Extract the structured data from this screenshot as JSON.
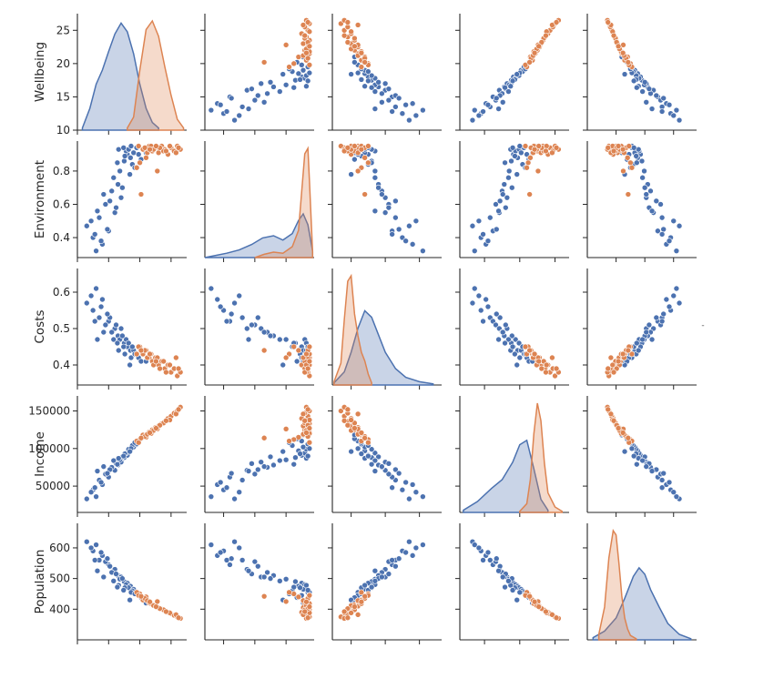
{
  "chart_data": {
    "type": "scatter",
    "title": "",
    "variables": [
      "Wellbeing",
      "Environment",
      "Costs",
      "Income",
      "Population"
    ],
    "axes": {
      "Wellbeing": {
        "range": [
          10,
          27.5
        ],
        "ticks": [
          10,
          15,
          20,
          25
        ],
        "tick_labels": [
          "10",
          "15",
          "20",
          "25"
        ]
      },
      "Environment": {
        "range": [
          0.28,
          0.98
        ],
        "ticks": [
          0.4,
          0.6,
          0.8
        ],
        "tick_labels": [
          "0.4",
          "0.6",
          "0.8"
        ]
      },
      "Costs": {
        "range": [
          0.345,
          0.665
        ],
        "ticks": [
          0.4,
          0.5,
          0.6
        ],
        "tick_labels": [
          "0.4",
          "0.5",
          "0.6"
        ]
      },
      "Income": {
        "range": [
          15000,
          170000
        ],
        "ticks": [
          50000,
          100000,
          150000
        ],
        "tick_labels": [
          "50000",
          "100000",
          "150000"
        ]
      },
      "Population": {
        "range": [
          300,
          680
        ],
        "ticks": [
          400,
          500,
          600
        ],
        "tick_labels": [
          "400",
          "500",
          "600"
        ]
      }
    },
    "diagonal": "kde",
    "off_diagonal": "scatter",
    "legend_handle_text": "-",
    "series": [
      {
        "name": "group-blue",
        "color": "#4c72b0",
        "points": [
          {
            "Wellbeing": 11.5,
            "Environment": 0.47,
            "Costs": 0.57,
            "Income": 33000,
            "Population": 620
          },
          {
            "Wellbeing": 13.0,
            "Environment": 0.32,
            "Costs": 0.61,
            "Income": 36000,
            "Population": 610
          },
          {
            "Wellbeing": 12.5,
            "Environment": 0.4,
            "Costs": 0.55,
            "Income": 45000,
            "Population": 590
          },
          {
            "Wellbeing": 14.0,
            "Environment": 0.36,
            "Costs": 0.58,
            "Income": 52000,
            "Population": 575
          },
          {
            "Wellbeing": 13.5,
            "Environment": 0.52,
            "Costs": 0.53,
            "Income": 58000,
            "Population": 560
          },
          {
            "Wellbeing": 15.0,
            "Environment": 0.44,
            "Costs": 0.52,
            "Income": 62000,
            "Population": 545
          },
          {
            "Wellbeing": 14.5,
            "Environment": 0.6,
            "Costs": 0.51,
            "Income": 66000,
            "Population": 555
          },
          {
            "Wellbeing": 16.0,
            "Environment": 0.55,
            "Costs": 0.5,
            "Income": 71000,
            "Population": 530
          },
          {
            "Wellbeing": 15.5,
            "Environment": 0.68,
            "Costs": 0.49,
            "Income": 75000,
            "Population": 520
          },
          {
            "Wellbeing": 16.5,
            "Environment": 0.72,
            "Costs": 0.48,
            "Income": 78000,
            "Population": 510
          },
          {
            "Wellbeing": 17.0,
            "Environment": 0.64,
            "Costs": 0.5,
            "Income": 82000,
            "Population": 505
          },
          {
            "Wellbeing": 16.8,
            "Environment": 0.8,
            "Costs": 0.47,
            "Income": 85000,
            "Population": 498
          },
          {
            "Wellbeing": 17.5,
            "Environment": 0.86,
            "Costs": 0.46,
            "Income": 88000,
            "Population": 490
          },
          {
            "Wellbeing": 18.0,
            "Environment": 0.9,
            "Costs": 0.45,
            "Income": 91000,
            "Population": 485
          },
          {
            "Wellbeing": 17.8,
            "Environment": 0.92,
            "Costs": 0.47,
            "Income": 94000,
            "Population": 480
          },
          {
            "Wellbeing": 18.5,
            "Environment": 0.88,
            "Costs": 0.44,
            "Income": 97000,
            "Population": 475
          },
          {
            "Wellbeing": 18.2,
            "Environment": 0.93,
            "Costs": 0.46,
            "Income": 99000,
            "Population": 470
          },
          {
            "Wellbeing": 19.0,
            "Environment": 0.91,
            "Costs": 0.44,
            "Income": 102000,
            "Population": 465
          },
          {
            "Wellbeing": 18.8,
            "Environment": 0.84,
            "Costs": 0.45,
            "Income": 104000,
            "Population": 460
          },
          {
            "Wellbeing": 19.5,
            "Environment": 0.94,
            "Costs": 0.43,
            "Income": 106000,
            "Population": 455
          },
          {
            "Wellbeing": 17.2,
            "Environment": 0.7,
            "Costs": 0.48,
            "Income": 89000,
            "Population": 500
          },
          {
            "Wellbeing": 16.2,
            "Environment": 0.58,
            "Costs": 0.51,
            "Income": 80000,
            "Population": 515
          },
          {
            "Wellbeing": 15.2,
            "Environment": 0.62,
            "Costs": 0.53,
            "Income": 72000,
            "Population": 540
          },
          {
            "Wellbeing": 14.8,
            "Environment": 0.45,
            "Costs": 0.54,
            "Income": 67000,
            "Population": 565
          },
          {
            "Wellbeing": 13.8,
            "Environment": 0.38,
            "Costs": 0.56,
            "Income": 55000,
            "Population": 585
          },
          {
            "Wellbeing": 12.2,
            "Environment": 0.5,
            "Costs": 0.59,
            "Income": 42000,
            "Population": 600
          },
          {
            "Wellbeing": 18.6,
            "Environment": 0.95,
            "Costs": 0.42,
            "Income": 100000,
            "Population": 455
          },
          {
            "Wellbeing": 17.6,
            "Environment": 0.89,
            "Costs": 0.43,
            "Income": 93000,
            "Population": 470
          },
          {
            "Wellbeing": 16.6,
            "Environment": 0.93,
            "Costs": 0.44,
            "Income": 87000,
            "Population": 478
          },
          {
            "Wellbeing": 19.8,
            "Environment": 0.9,
            "Costs": 0.42,
            "Income": 110000,
            "Population": 445
          },
          {
            "Wellbeing": 20.2,
            "Environment": 0.87,
            "Costs": 0.41,
            "Income": 113000,
            "Population": 438
          },
          {
            "Wellbeing": 15.8,
            "Environment": 0.76,
            "Costs": 0.47,
            "Income": 84000,
            "Population": 492
          },
          {
            "Wellbeing": 14.2,
            "Environment": 0.66,
            "Costs": 0.49,
            "Income": 76000,
            "Population": 505
          },
          {
            "Wellbeing": 13.2,
            "Environment": 0.56,
            "Costs": 0.47,
            "Income": 70000,
            "Population": 525
          },
          {
            "Wellbeing": 18.4,
            "Environment": 0.78,
            "Costs": 0.4,
            "Income": 96000,
            "Population": 430
          },
          {
            "Wellbeing": 17.4,
            "Environment": 0.94,
            "Costs": 0.45,
            "Income": 90000,
            "Population": 462
          },
          {
            "Wellbeing": 16.4,
            "Environment": 0.85,
            "Costs": 0.46,
            "Income": 79000,
            "Population": 472
          },
          {
            "Wellbeing": 19.2,
            "Environment": 0.82,
            "Costs": 0.43,
            "Income": 108000,
            "Population": 450
          },
          {
            "Wellbeing": 12.8,
            "Environment": 0.42,
            "Costs": 0.52,
            "Income": 48000,
            "Population": 560
          },
          {
            "Wellbeing": 21.0,
            "Environment": 0.91,
            "Costs": 0.41,
            "Income": 118000,
            "Population": 420
          }
        ]
      },
      {
        "name": "group-orange",
        "color": "#dd8452",
        "points": [
          {
            "Wellbeing": 20.5,
            "Environment": 0.93,
            "Costs": 0.43,
            "Income": 118000,
            "Population": 430
          },
          {
            "Wellbeing": 21.5,
            "Environment": 0.95,
            "Costs": 0.42,
            "Income": 122000,
            "Population": 420
          },
          {
            "Wellbeing": 22.0,
            "Environment": 0.92,
            "Costs": 0.41,
            "Income": 125000,
            "Population": 415
          },
          {
            "Wellbeing": 22.5,
            "Environment": 0.94,
            "Costs": 0.42,
            "Income": 128000,
            "Population": 410
          },
          {
            "Wellbeing": 23.0,
            "Environment": 0.91,
            "Costs": 0.4,
            "Income": 130000,
            "Population": 405
          },
          {
            "Wellbeing": 23.5,
            "Environment": 0.95,
            "Costs": 0.41,
            "Income": 133000,
            "Population": 400
          },
          {
            "Wellbeing": 24.0,
            "Environment": 0.93,
            "Costs": 0.39,
            "Income": 136000,
            "Population": 395
          },
          {
            "Wellbeing": 24.5,
            "Environment": 0.9,
            "Costs": 0.4,
            "Income": 140000,
            "Population": 390
          },
          {
            "Wellbeing": 25.0,
            "Environment": 0.94,
            "Costs": 0.38,
            "Income": 143000,
            "Population": 385
          },
          {
            "Wellbeing": 25.5,
            "Environment": 0.92,
            "Costs": 0.39,
            "Income": 147000,
            "Population": 380
          },
          {
            "Wellbeing": 26.0,
            "Environment": 0.95,
            "Costs": 0.37,
            "Income": 150000,
            "Population": 375
          },
          {
            "Wellbeing": 26.5,
            "Environment": 0.93,
            "Costs": 0.38,
            "Income": 155000,
            "Population": 370
          },
          {
            "Wellbeing": 21.0,
            "Environment": 0.88,
            "Costs": 0.44,
            "Income": 115000,
            "Population": 440
          },
          {
            "Wellbeing": 20.0,
            "Environment": 0.85,
            "Costs": 0.45,
            "Income": 112000,
            "Population": 450
          },
          {
            "Wellbeing": 19.5,
            "Environment": 0.82,
            "Costs": 0.43,
            "Income": 110000,
            "Population": 455
          },
          {
            "Wellbeing": 22.8,
            "Environment": 0.8,
            "Costs": 0.42,
            "Income": 126000,
            "Population": 425
          },
          {
            "Wellbeing": 21.8,
            "Environment": 0.95,
            "Costs": 0.43,
            "Income": 120000,
            "Population": 418
          },
          {
            "Wellbeing": 20.8,
            "Environment": 0.94,
            "Costs": 0.44,
            "Income": 116000,
            "Population": 435
          },
          {
            "Wellbeing": 23.8,
            "Environment": 0.92,
            "Costs": 0.41,
            "Income": 134000,
            "Population": 398
          },
          {
            "Wellbeing": 24.8,
            "Environment": 0.95,
            "Costs": 0.4,
            "Income": 138000,
            "Population": 388
          },
          {
            "Wellbeing": 25.8,
            "Environment": 0.91,
            "Costs": 0.42,
            "Income": 146000,
            "Population": 382
          },
          {
            "Wellbeing": 22.2,
            "Environment": 0.93,
            "Costs": 0.4,
            "Income": 124000,
            "Population": 412
          },
          {
            "Wellbeing": 19.8,
            "Environment": 0.95,
            "Costs": 0.45,
            "Income": 108000,
            "Population": 445
          },
          {
            "Wellbeing": 21.2,
            "Environment": 0.91,
            "Costs": 0.42,
            "Income": 119000,
            "Population": 428
          },
          {
            "Wellbeing": 23.2,
            "Environment": 0.94,
            "Costs": 0.39,
            "Income": 131000,
            "Population": 402
          },
          {
            "Wellbeing": 20.2,
            "Environment": 0.66,
            "Costs": 0.44,
            "Income": 114000,
            "Population": 442
          },
          {
            "Wellbeing": 24.2,
            "Environment": 0.92,
            "Costs": 0.38,
            "Income": 137000,
            "Population": 392
          },
          {
            "Wellbeing": 22.6,
            "Environment": 0.95,
            "Costs": 0.41,
            "Income": 127000,
            "Population": 408
          },
          {
            "Wellbeing": 21.6,
            "Environment": 0.93,
            "Costs": 0.43,
            "Income": 121000,
            "Population": 424
          },
          {
            "Wellbeing": 26.2,
            "Environment": 0.94,
            "Costs": 0.39,
            "Income": 152000,
            "Population": 372
          }
        ]
      }
    ],
    "diagonal_kde": {
      "Wellbeing": [
        {
          "series": "group-blue",
          "x": [
            10.8,
            12,
            13,
            14,
            15,
            16,
            17,
            18,
            19,
            20,
            21,
            22,
            23
          ],
          "density": [
            0.02,
            0.2,
            0.42,
            0.55,
            0.72,
            0.88,
            0.98,
            0.9,
            0.7,
            0.42,
            0.2,
            0.07,
            0.02
          ]
        },
        {
          "series": "group-orange",
          "x": [
            18,
            19,
            20,
            21,
            22,
            23,
            24,
            25,
            26,
            27
          ],
          "density": [
            0.02,
            0.12,
            0.55,
            0.92,
            1.0,
            0.86,
            0.58,
            0.32,
            0.1,
            0.02
          ]
        }
      ],
      "Environment": [
        {
          "series": "group-blue",
          "x": [
            0.28,
            0.35,
            0.42,
            0.5,
            0.58,
            0.65,
            0.72,
            0.78,
            0.84,
            0.88,
            0.91,
            0.94,
            0.97
          ],
          "density": [
            0.0,
            0.02,
            0.04,
            0.07,
            0.12,
            0.18,
            0.2,
            0.16,
            0.22,
            0.34,
            0.4,
            0.3,
            0.06
          ]
        },
        {
          "series": "group-orange",
          "x": [
            0.6,
            0.66,
            0.72,
            0.78,
            0.84,
            0.88,
            0.9,
            0.92,
            0.94,
            0.95,
            0.97
          ],
          "density": [
            0.0,
            0.03,
            0.05,
            0.04,
            0.1,
            0.25,
            0.6,
            0.95,
            1.0,
            0.7,
            0.05
          ]
        }
      ],
      "Costs": [
        {
          "series": "group-blue",
          "x": [
            0.35,
            0.38,
            0.4,
            0.42,
            0.44,
            0.46,
            0.48,
            0.5,
            0.53,
            0.56,
            0.6,
            0.64
          ],
          "density": [
            0.02,
            0.12,
            0.3,
            0.52,
            0.68,
            0.62,
            0.46,
            0.3,
            0.15,
            0.07,
            0.03,
            0.01
          ]
        },
        {
          "series": "group-orange",
          "x": [
            0.35,
            0.37,
            0.38,
            0.39,
            0.4,
            0.41,
            0.42,
            0.43,
            0.44,
            0.45,
            0.46
          ],
          "density": [
            0.03,
            0.2,
            0.6,
            0.95,
            1.0,
            0.65,
            0.45,
            0.3,
            0.22,
            0.1,
            0.02
          ]
        }
      ],
      "Income": [
        {
          "series": "group-blue",
          "x": [
            20000,
            40000,
            60000,
            75000,
            90000,
            100000,
            110000,
            120000,
            130000,
            140000
          ],
          "density": [
            0.02,
            0.1,
            0.22,
            0.3,
            0.46,
            0.62,
            0.66,
            0.4,
            0.12,
            0.02
          ]
        },
        {
          "series": "group-orange",
          "x": [
            100000,
            110000,
            115000,
            120000,
            125000,
            130000,
            135000,
            140000,
            150000,
            160000
          ],
          "density": [
            0.01,
            0.08,
            0.3,
            0.72,
            1.0,
            0.84,
            0.45,
            0.18,
            0.05,
            0.01
          ]
        }
      ],
      "Population": [
        {
          "series": "group-blue",
          "x": [
            320,
            360,
            400,
            430,
            460,
            480,
            500,
            520,
            550,
            580,
            620,
            660
          ],
          "density": [
            0.02,
            0.08,
            0.2,
            0.38,
            0.58,
            0.66,
            0.6,
            0.46,
            0.3,
            0.15,
            0.05,
            0.01
          ]
        },
        {
          "series": "group-orange",
          "x": [
            340,
            360,
            375,
            390,
            400,
            410,
            420,
            430,
            440,
            450,
            470
          ],
          "density": [
            0.05,
            0.3,
            0.75,
            1.0,
            0.96,
            0.7,
            0.4,
            0.2,
            0.1,
            0.04,
            0.01
          ]
        }
      ]
    }
  }
}
